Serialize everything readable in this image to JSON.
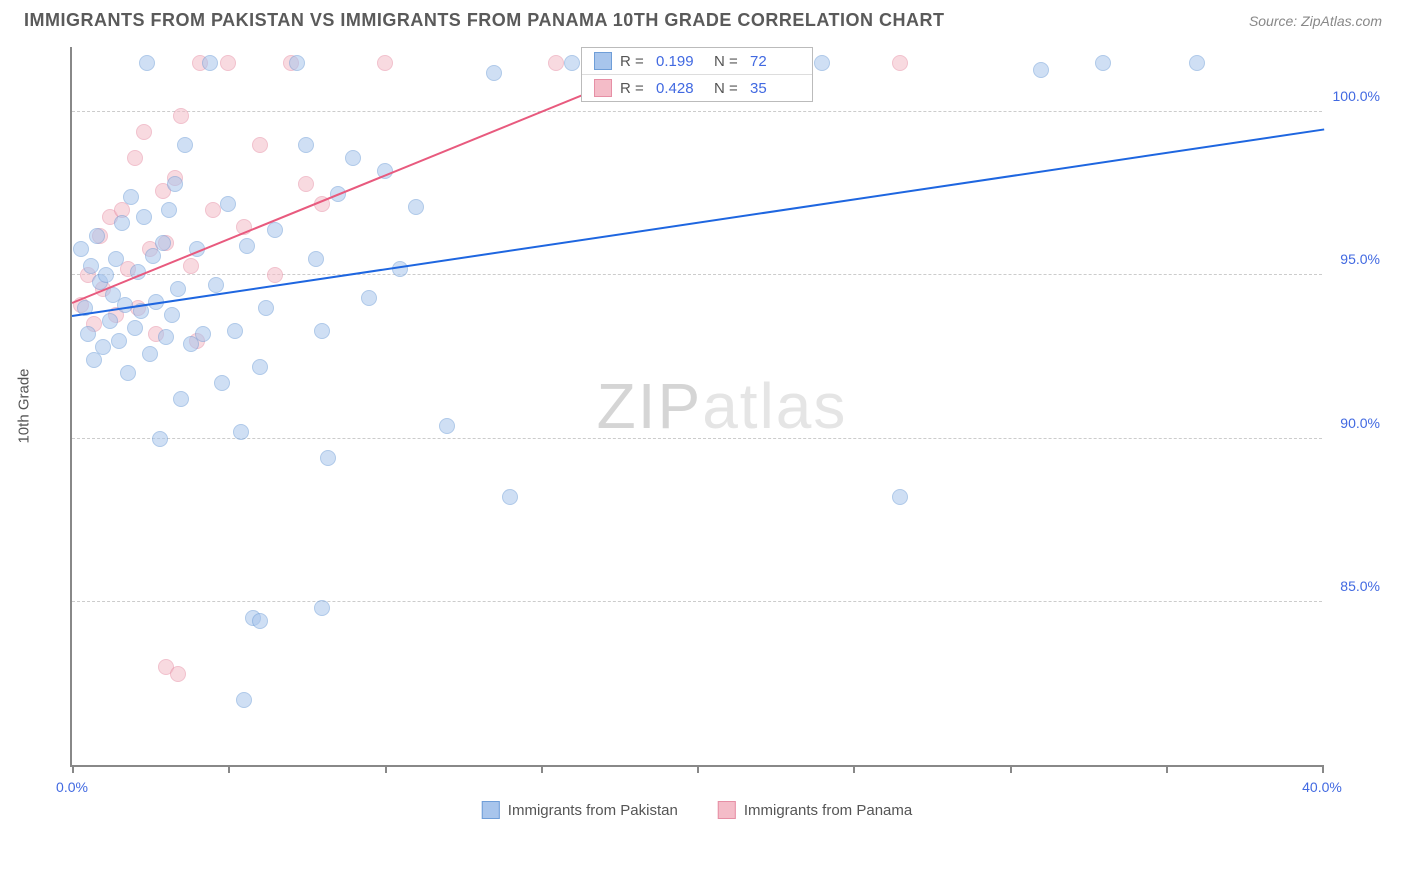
{
  "title": "IMMIGRANTS FROM PAKISTAN VS IMMIGRANTS FROM PANAMA 10TH GRADE CORRELATION CHART",
  "source": "Source: ZipAtlas.com",
  "watermark_1": "ZIP",
  "watermark_2": "atlas",
  "chart": {
    "type": "scatter",
    "xlim": [
      0,
      40
    ],
    "ylim": [
      80,
      102
    ],
    "y_ticks": [
      85.0,
      90.0,
      95.0,
      100.0
    ],
    "y_tick_labels": [
      "85.0%",
      "90.0%",
      "95.0%",
      "100.0%"
    ],
    "x_ticks": [
      0,
      5,
      10,
      15,
      20,
      25,
      30,
      35,
      40
    ],
    "x_tick_labels": [
      "0.0%",
      "",
      "",
      "",
      "",
      "",
      "",
      "",
      "40.0%"
    ],
    "y_axis_label": "10th Grade",
    "grid_color": "#cccccc",
    "axis_color": "#888888",
    "label_color": "#4169E1",
    "background_color": "#ffffff",
    "title_fontsize": 18,
    "axis_fontsize": 15,
    "tick_fontsize": 14,
    "marker_size": 16,
    "marker_opacity": 0.55
  },
  "series": [
    {
      "name": "Immigrants from Pakistan",
      "color_fill": "#a8c5ec",
      "color_stroke": "#6f9ed8",
      "trend_color": "#1e66e0",
      "R": "0.199",
      "N": "72",
      "trend": {
        "x1": 0,
        "y1": 93.8,
        "x2": 40,
        "y2": 99.5
      },
      "points": [
        [
          0.3,
          95.8
        ],
        [
          0.4,
          94.0
        ],
        [
          0.5,
          93.2
        ],
        [
          0.6,
          95.3
        ],
        [
          0.7,
          92.4
        ],
        [
          0.8,
          96.2
        ],
        [
          0.9,
          94.8
        ],
        [
          1.0,
          92.8
        ],
        [
          1.1,
          95.0
        ],
        [
          1.2,
          93.6
        ],
        [
          1.3,
          94.4
        ],
        [
          1.4,
          95.5
        ],
        [
          1.5,
          93.0
        ],
        [
          1.6,
          96.6
        ],
        [
          1.7,
          94.1
        ],
        [
          1.8,
          92.0
        ],
        [
          1.9,
          97.4
        ],
        [
          2.0,
          93.4
        ],
        [
          2.1,
          95.1
        ],
        [
          2.2,
          93.9
        ],
        [
          2.3,
          96.8
        ],
        [
          2.4,
          101.5
        ],
        [
          2.5,
          92.6
        ],
        [
          2.6,
          95.6
        ],
        [
          2.7,
          94.2
        ],
        [
          2.8,
          90.0
        ],
        [
          2.9,
          96.0
        ],
        [
          3.0,
          93.1
        ],
        [
          3.1,
          97.0
        ],
        [
          3.2,
          93.8
        ],
        [
          3.3,
          97.8
        ],
        [
          3.4,
          94.6
        ],
        [
          3.5,
          91.2
        ],
        [
          3.6,
          99.0
        ],
        [
          3.8,
          92.9
        ],
        [
          4.0,
          95.8
        ],
        [
          4.2,
          93.2
        ],
        [
          4.4,
          101.5
        ],
        [
          4.6,
          94.7
        ],
        [
          4.8,
          91.7
        ],
        [
          5.0,
          97.2
        ],
        [
          5.2,
          93.3
        ],
        [
          5.4,
          90.2
        ],
        [
          5.6,
          95.9
        ],
        [
          5.8,
          84.5
        ],
        [
          6.0,
          92.2
        ],
        [
          6.2,
          94.0
        ],
        [
          6.5,
          96.4
        ],
        [
          5.5,
          82.0
        ],
        [
          6.0,
          84.4
        ],
        [
          7.2,
          101.5
        ],
        [
          7.5,
          99.0
        ],
        [
          7.8,
          95.5
        ],
        [
          8.0,
          93.3
        ],
        [
          8.2,
          89.4
        ],
        [
          8.5,
          97.5
        ],
        [
          8.0,
          84.8
        ],
        [
          9.0,
          98.6
        ],
        [
          9.5,
          94.3
        ],
        [
          10.0,
          98.2
        ],
        [
          10.5,
          95.2
        ],
        [
          11.0,
          97.1
        ],
        [
          12.0,
          90.4
        ],
        [
          13.5,
          101.2
        ],
        [
          14.0,
          88.2
        ],
        [
          16.0,
          101.5
        ],
        [
          18.0,
          101.5
        ],
        [
          24.0,
          101.5
        ],
        [
          26.5,
          88.2
        ],
        [
          31.0,
          101.3
        ],
        [
          33.0,
          101.5
        ],
        [
          36.0,
          101.5
        ]
      ]
    },
    {
      "name": "Immigrants from Panama",
      "color_fill": "#f4bcc8",
      "color_stroke": "#e68fa5",
      "trend_color": "#e85a7e",
      "R": "0.428",
      "N": "35",
      "trend": {
        "x1": 0,
        "y1": 94.2,
        "x2": 19,
        "y2": 101.6
      },
      "points": [
        [
          0.3,
          94.1
        ],
        [
          0.5,
          95.0
        ],
        [
          0.7,
          93.5
        ],
        [
          0.9,
          96.2
        ],
        [
          1.0,
          94.6
        ],
        [
          1.2,
          96.8
        ],
        [
          1.4,
          93.8
        ],
        [
          1.6,
          97.0
        ],
        [
          1.8,
          95.2
        ],
        [
          2.0,
          98.6
        ],
        [
          2.1,
          94.0
        ],
        [
          2.3,
          99.4
        ],
        [
          2.5,
          95.8
        ],
        [
          2.7,
          93.2
        ],
        [
          2.9,
          97.6
        ],
        [
          3.0,
          96.0
        ],
        [
          3.3,
          98.0
        ],
        [
          3.5,
          99.9
        ],
        [
          3.8,
          95.3
        ],
        [
          4.0,
          93.0
        ],
        [
          3.0,
          83.0
        ],
        [
          3.4,
          82.8
        ],
        [
          4.1,
          101.5
        ],
        [
          4.5,
          97.0
        ],
        [
          5.0,
          101.5
        ],
        [
          5.5,
          96.5
        ],
        [
          6.0,
          99.0
        ],
        [
          6.5,
          95.0
        ],
        [
          7.0,
          101.5
        ],
        [
          7.5,
          97.8
        ],
        [
          8.0,
          97.2
        ],
        [
          10.0,
          101.5
        ],
        [
          15.5,
          101.5
        ],
        [
          18.5,
          101.5
        ],
        [
          26.5,
          101.5
        ]
      ]
    }
  ],
  "legend_labels": {
    "R": "R =",
    "N": "N ="
  },
  "bottom_legend": [
    {
      "label": "Immigrants from Pakistan",
      "swatch_fill": "#a8c5ec",
      "swatch_stroke": "#6f9ed8"
    },
    {
      "label": "Immigrants from Panama",
      "swatch_fill": "#f4bcc8",
      "swatch_stroke": "#e68fa5"
    }
  ]
}
